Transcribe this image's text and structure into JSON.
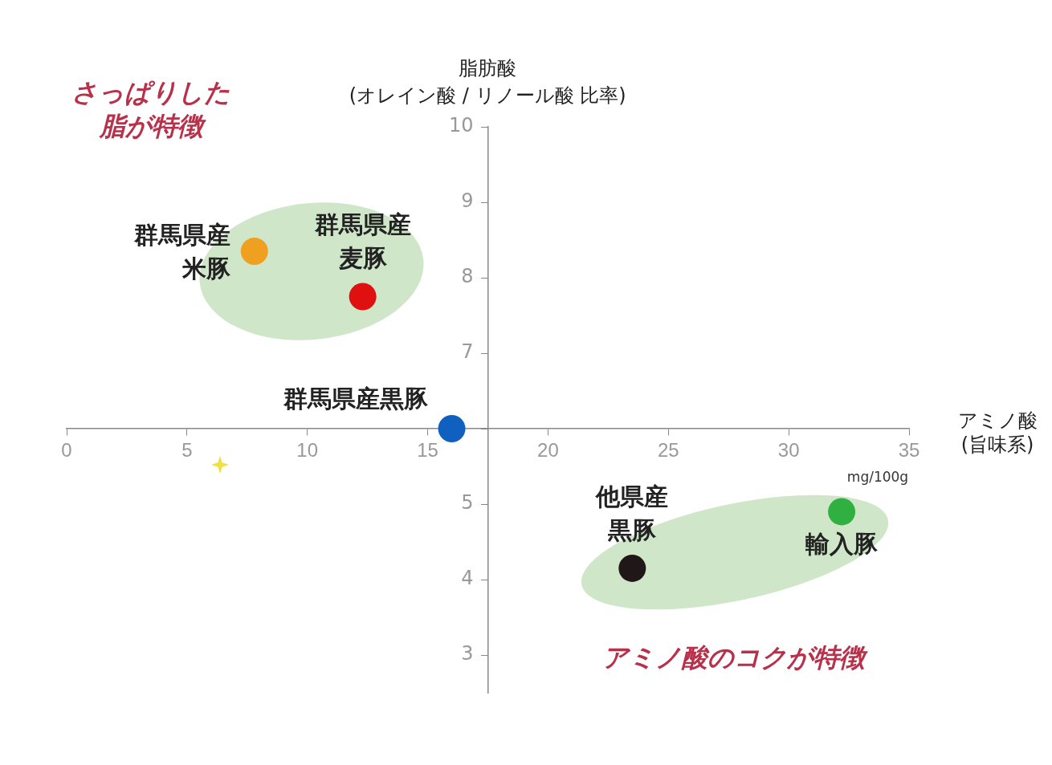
{
  "chart_data": {
    "type": "scatter",
    "xlabel": "アミノ酸\n(旨味系)",
    "ylabel": "脂肪酸\n(オレイン酸 / リノール酸 比率)",
    "xlim": [
      0,
      35
    ],
    "xticks": [
      0,
      5,
      10,
      15,
      20,
      25,
      30,
      35
    ],
    "ylim": [
      2.5,
      10
    ],
    "yticks": [
      3,
      4,
      5,
      {
        "value": 6,
        "label": null
      },
      7,
      8,
      9,
      10
    ],
    "grid": false,
    "legend": false,
    "marker": "circle",
    "series": [
      {
        "name": "群馬県産米豚",
        "color": "#f0a020",
        "x": [
          7.8
        ],
        "values": [
          8.35
        ]
      },
      {
        "name": "群馬県産麦豚",
        "color": "#e01010",
        "x": [
          12.3
        ],
        "values": [
          7.75
        ]
      },
      {
        "name": "群馬県産黒豚",
        "color": "#1060c0",
        "x": [
          16.0
        ],
        "values": [
          6.0
        ]
      },
      {
        "name": "他県産黒豚",
        "color": "#201818",
        "x": [
          23.5
        ],
        "values": [
          4.15
        ]
      },
      {
        "name": "輸入豚",
        "color": "#30b040",
        "x": [
          32.2
        ],
        "values": [
          4.9
        ]
      }
    ],
    "annotations": [
      "さっぱりした脂が特徴",
      "アミノ酸のコクが特徴",
      "mg/100g"
    ]
  }
}
